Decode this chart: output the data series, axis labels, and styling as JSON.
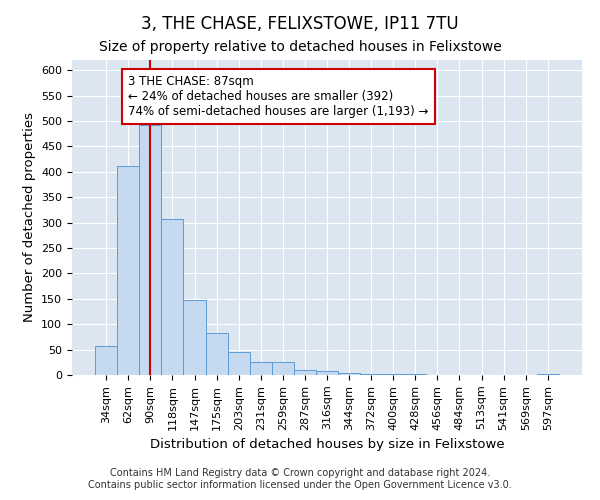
{
  "title": "3, THE CHASE, FELIXSTOWE, IP11 7TU",
  "subtitle": "Size of property relative to detached houses in Felixstowe",
  "xlabel": "Distribution of detached houses by size in Felixstowe",
  "ylabel": "Number of detached properties",
  "bar_labels": [
    "34sqm",
    "62sqm",
    "90sqm",
    "118sqm",
    "147sqm",
    "175sqm",
    "203sqm",
    "231sqm",
    "259sqm",
    "287sqm",
    "316sqm",
    "344sqm",
    "372sqm",
    "400sqm",
    "428sqm",
    "456sqm",
    "484sqm",
    "513sqm",
    "541sqm",
    "569sqm",
    "597sqm"
  ],
  "bar_heights": [
    57,
    412,
    493,
    307,
    148,
    82,
    45,
    25,
    25,
    10,
    8,
    3,
    2,
    1,
    1,
    0,
    0,
    0,
    0,
    0,
    1
  ],
  "bar_color": "#c5d9f1",
  "bar_edge_color": "#5b9bd5",
  "bar_width": 1.0,
  "vline_x": 2.0,
  "vline_color": "#cc0000",
  "annotation_text": "3 THE CHASE: 87sqm\n← 24% of detached houses are smaller (392)\n74% of semi-detached houses are larger (1,193) →",
  "annotation_box_color": "#ffffff",
  "annotation_box_edge": "#cc0000",
  "ylim": [
    0,
    620
  ],
  "yticks": [
    0,
    50,
    100,
    150,
    200,
    250,
    300,
    350,
    400,
    450,
    500,
    550,
    600
  ],
  "footer_line1": "Contains HM Land Registry data © Crown copyright and database right 2024.",
  "footer_line2": "Contains public sector information licensed under the Open Government Licence v3.0.",
  "fig_background": "#ffffff",
  "plot_background": "#dce6f1",
  "grid_color": "#ffffff",
  "title_fontsize": 12,
  "subtitle_fontsize": 10,
  "axis_label_fontsize": 9.5,
  "tick_fontsize": 8,
  "annotation_fontsize": 8.5,
  "footer_fontsize": 7
}
